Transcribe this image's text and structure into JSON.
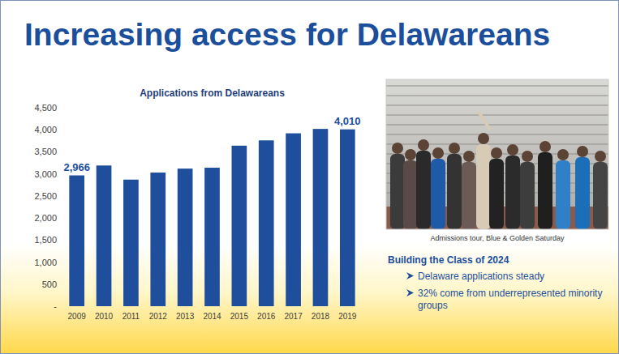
{
  "chart_data": {
    "type": "bar",
    "title": "Applications from Delawareans",
    "categories": [
      "2009",
      "2010",
      "2011",
      "2012",
      "2013",
      "2014",
      "2015",
      "2016",
      "2017",
      "2018",
      "2019"
    ],
    "values": [
      2966,
      3190,
      2870,
      3030,
      3120,
      3140,
      3640,
      3760,
      3920,
      4020,
      4010
    ],
    "value_labels": [
      "2,966",
      null,
      null,
      null,
      null,
      null,
      null,
      null,
      null,
      null,
      "4,010"
    ],
    "data_labels": true,
    "color": "#1f4e9c",
    "ylim": [
      0,
      4500
    ],
    "yticks": [
      {
        "value": 0,
        "label": "-"
      },
      500,
      {
        "value": 1000,
        "label": "1,000"
      },
      {
        "value": 1500,
        "label": "1,500"
      },
      {
        "value": 2000,
        "label": "2,000"
      },
      {
        "value": 2500,
        "label": "2,500"
      },
      {
        "value": 3000,
        "label": "3,000"
      },
      {
        "value": 3500,
        "label": "3,500"
      },
      {
        "value": 4000,
        "label": "4,000"
      },
      {
        "value": 4500,
        "label": "4,500"
      }
    ],
    "grid": false
  },
  "slide": {
    "title": "Increasing access for Delawareans",
    "photo_caption": "Admissions tour, Blue & Golden Saturday",
    "section_head": "Building the Class of 2024",
    "bullets": [
      "Delaware applications steady",
      "32% come from underrepresented minority groups"
    ]
  }
}
